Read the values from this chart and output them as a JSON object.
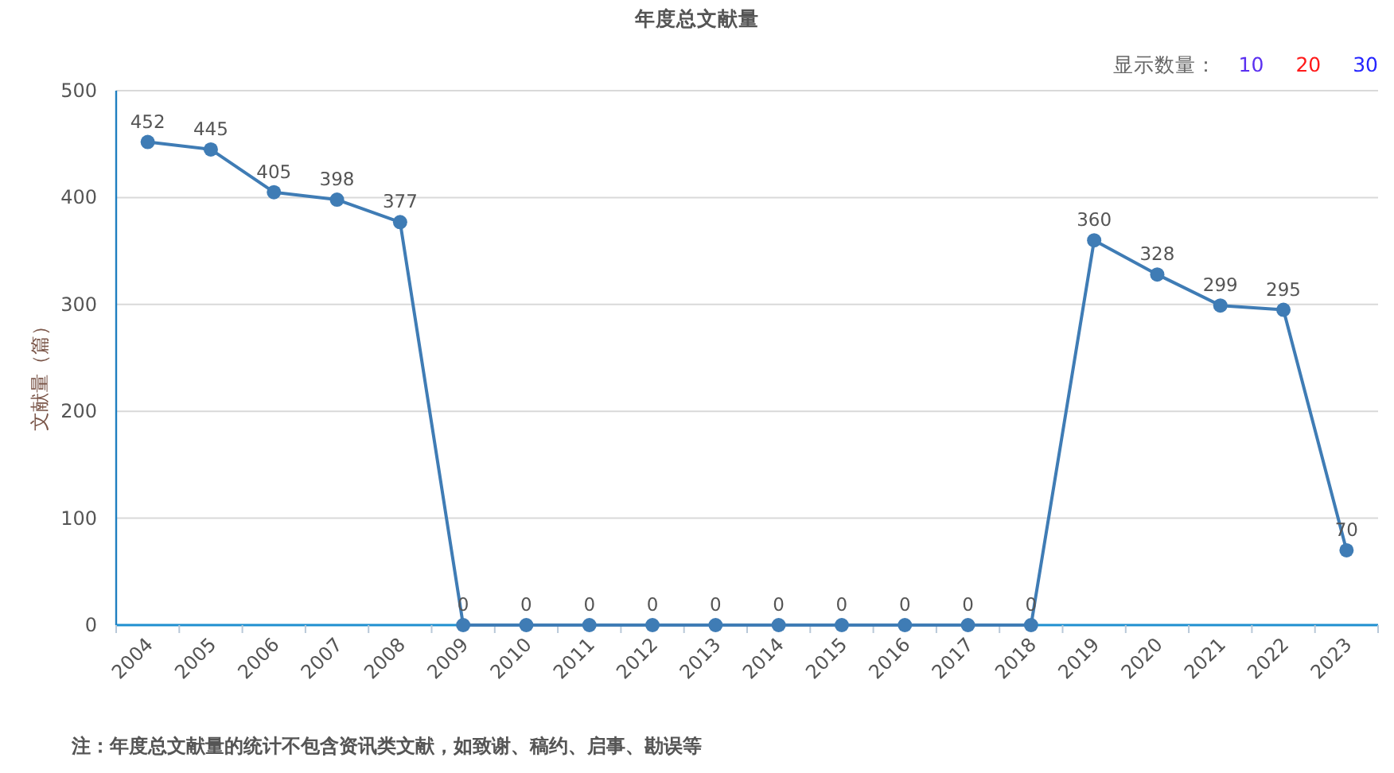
{
  "chart_data": {
    "type": "line",
    "title": "年度总文献量",
    "ylabel": "文献量（篇）",
    "categories": [
      "2004",
      "2005",
      "2006",
      "2007",
      "2008",
      "2009",
      "2010",
      "2011",
      "2012",
      "2013",
      "2014",
      "2015",
      "2016",
      "2017",
      "2018",
      "2019",
      "2020",
      "2021",
      "2022",
      "2023"
    ],
    "series": [
      {
        "color": "#3f7cb5",
        "values": [
          452,
          445,
          405,
          398,
          377,
          0,
          0,
          0,
          0,
          0,
          0,
          0,
          0,
          0,
          0,
          360,
          328,
          299,
          295,
          70
        ]
      }
    ],
    "ylim": [
      0,
      500
    ],
    "yticks": [
      0,
      100,
      200,
      300,
      400,
      500
    ],
    "grid": "y",
    "marker": "circle",
    "line_style": "solid",
    "data_labels": true,
    "annotations": [
      "显示数量：",
      "10",
      "20",
      "30",
      "注：年度总文献量的统计不包含资讯类文献，如致谢、稿约、启事、勘误等"
    ]
  }
}
